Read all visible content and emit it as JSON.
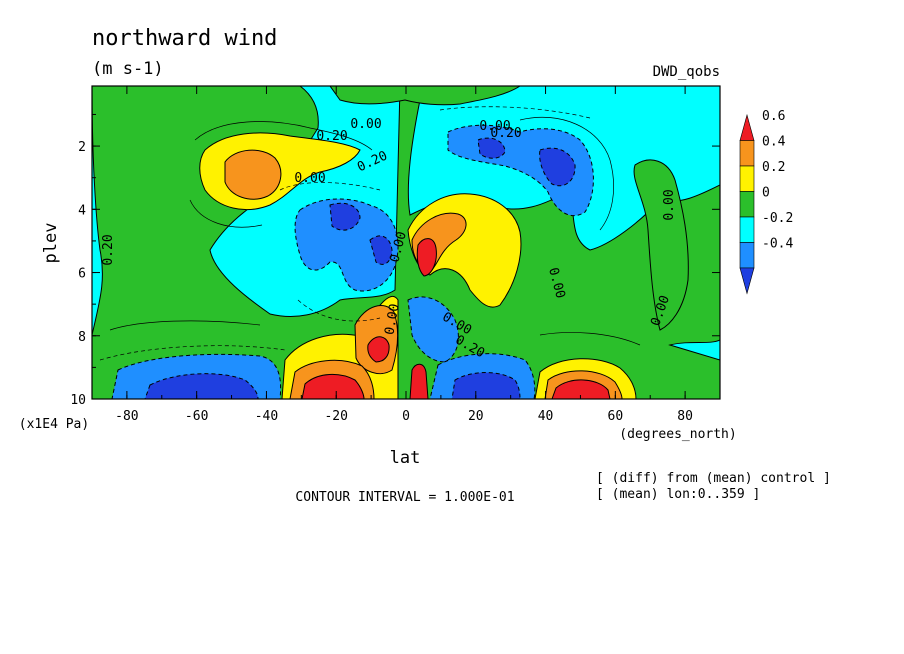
{
  "figure": {
    "title": "northward wind",
    "units": "(m s-1)",
    "run_label": "DWD_qobs",
    "contour_interval": "CONTOUR INTERVAL = 1.000E-01",
    "notes": [
      "[ (diff) from (mean) control ]",
      "[ (mean) lon:0..359 ]"
    ]
  },
  "chart_data": {
    "type": "heatmap",
    "title": "northward wind",
    "subtitle": "(m s-1)",
    "xlabel": "lat",
    "xunits": "(degrees_north)",
    "ylabel": "plev",
    "yunits": "(x1E4 Pa)",
    "xlim": [
      -90,
      90
    ],
    "ylim": [
      10,
      0.1
    ],
    "y_inverted": true,
    "xticks": [
      "-80",
      "-60",
      "-40",
      "-20",
      "0",
      "20",
      "40",
      "60",
      "80"
    ],
    "yticks": [
      "2",
      "4",
      "6",
      "8",
      "10"
    ],
    "contour_interval": 0.1,
    "colorbar": {
      "levels": [
        "0.6",
        "0.4",
        "0.2",
        "0",
        "-0.2",
        "-0.4"
      ],
      "colors": [
        "#ee1c24",
        "#f7941d",
        "#fff200",
        "#2bbf2b",
        "#00ffff",
        "#1f8fff",
        "#1f3fe0"
      ]
    },
    "contour_labels": [
      "0.20",
      "0.00",
      "0.20",
      "0.00",
      "0.20",
      "0.00",
      "0.00",
      "0.00",
      "0.00",
      "0.00",
      "0.00",
      "0.20",
      "0.00",
      "0.20"
    ],
    "features": [
      {
        "lat": -48,
        "plev": 2.7,
        "value": 0.45
      },
      {
        "lat": -25,
        "plev": 9.8,
        "value": 0.6
      },
      {
        "lat": -8,
        "plev": 8.2,
        "value": 0.6
      },
      {
        "lat": 6,
        "plev": 5.4,
        "value": 0.6
      },
      {
        "lat": 22,
        "plev": 4.2,
        "value": 0.4
      },
      {
        "lat": 48,
        "plev": 9.8,
        "value": 0.6
      },
      {
        "lat": -62,
        "plev": 9.8,
        "value": -0.5
      },
      {
        "lat": -22,
        "plev": 4.3,
        "value": -0.3
      },
      {
        "lat": 10,
        "plev": 8.5,
        "value": -0.4
      },
      {
        "lat": 28,
        "plev": 9.7,
        "value": -0.5
      },
      {
        "lat": 45,
        "plev": 2.9,
        "value": -0.3
      },
      {
        "lat": 5,
        "plev": 2.5,
        "value": -0.3
      }
    ]
  }
}
